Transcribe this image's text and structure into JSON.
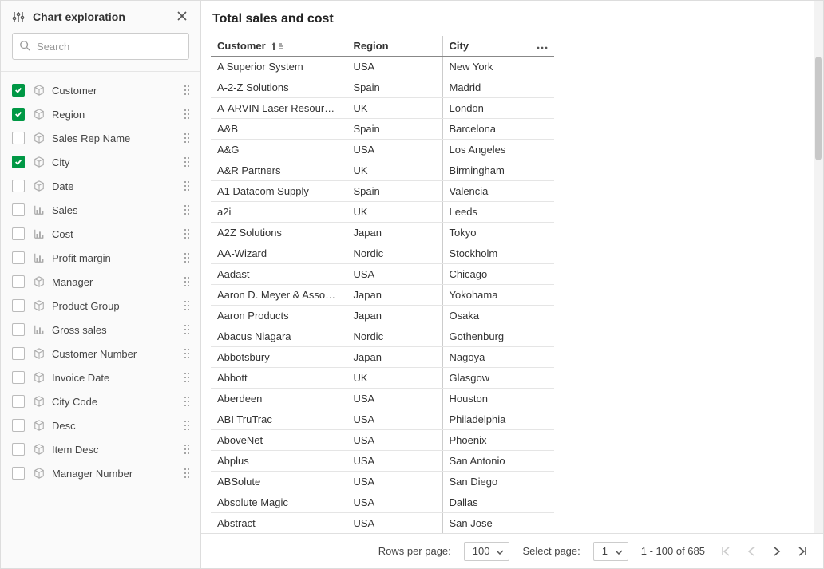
{
  "sidebar": {
    "title": "Chart exploration",
    "search_placeholder": "Search",
    "fields": [
      {
        "label": "Customer",
        "checked": true,
        "type": "dimension"
      },
      {
        "label": "Region",
        "checked": true,
        "type": "dimension"
      },
      {
        "label": "Sales Rep Name",
        "checked": false,
        "type": "dimension"
      },
      {
        "label": "City",
        "checked": true,
        "type": "dimension"
      },
      {
        "label": "Date",
        "checked": false,
        "type": "dimension"
      },
      {
        "label": "Sales",
        "checked": false,
        "type": "measure"
      },
      {
        "label": "Cost",
        "checked": false,
        "type": "measure"
      },
      {
        "label": "Profit margin",
        "checked": false,
        "type": "measure"
      },
      {
        "label": "Manager",
        "checked": false,
        "type": "dimension"
      },
      {
        "label": "Product Group",
        "checked": false,
        "type": "dimension"
      },
      {
        "label": "Gross sales",
        "checked": false,
        "type": "measure"
      },
      {
        "label": "Customer Number",
        "checked": false,
        "type": "dimension"
      },
      {
        "label": "Invoice Date",
        "checked": false,
        "type": "dimension"
      },
      {
        "label": "City Code",
        "checked": false,
        "type": "dimension"
      },
      {
        "label": "Desc",
        "checked": false,
        "type": "dimension"
      },
      {
        "label": "Item Desc",
        "checked": false,
        "type": "dimension"
      },
      {
        "label": "Manager Number",
        "checked": false,
        "type": "dimension"
      }
    ]
  },
  "main": {
    "title": "Total sales and cost",
    "columns": [
      {
        "label": "Customer",
        "sorted": true
      },
      {
        "label": "Region",
        "sorted": false
      },
      {
        "label": "City",
        "sorted": false
      }
    ],
    "rows": [
      [
        "A Superior System",
        "USA",
        "New York"
      ],
      [
        "A-2-Z Solutions",
        "Spain",
        "Madrid"
      ],
      [
        "A-ARVIN Laser Resources",
        "UK",
        "London"
      ],
      [
        "A&B",
        "Spain",
        "Barcelona"
      ],
      [
        "A&G",
        "USA",
        "Los Angeles"
      ],
      [
        "A&R Partners",
        "UK",
        "Birmingham"
      ],
      [
        "A1 Datacom Supply",
        "Spain",
        "Valencia"
      ],
      [
        "a2i",
        "UK",
        "Leeds"
      ],
      [
        "A2Z Solutions",
        "Japan",
        "Tokyo"
      ],
      [
        "AA-Wizard",
        "Nordic",
        "Stockholm"
      ],
      [
        "Aadast",
        "USA",
        "Chicago"
      ],
      [
        "Aaron D. Meyer & Associates",
        "Japan",
        "Yokohama"
      ],
      [
        "Aaron Products",
        "Japan",
        "Osaka"
      ],
      [
        "Abacus Niagara",
        "Nordic",
        "Gothenburg"
      ],
      [
        "Abbotsbury",
        "Japan",
        "Nagoya"
      ],
      [
        "Abbott",
        "UK",
        "Glasgow"
      ],
      [
        "Aberdeen",
        "USA",
        "Houston"
      ],
      [
        "ABI TruTrac",
        "USA",
        "Philadelphia"
      ],
      [
        "AboveNet",
        "USA",
        "Phoenix"
      ],
      [
        "Abplus",
        "USA",
        "San Antonio"
      ],
      [
        "ABSolute",
        "USA",
        "San Diego"
      ],
      [
        "Absolute Magic",
        "USA",
        "Dallas"
      ],
      [
        "Abstract",
        "USA",
        "San Jose"
      ]
    ]
  },
  "footer": {
    "rows_per_page_label": "Rows per page:",
    "rows_per_page_value": "100",
    "select_page_label": "Select page:",
    "select_page_value": "1",
    "range_text": "1 - 100 of 685"
  },
  "colors": {
    "accent": "#009845",
    "border": "#dddddd",
    "text": "#333333"
  }
}
